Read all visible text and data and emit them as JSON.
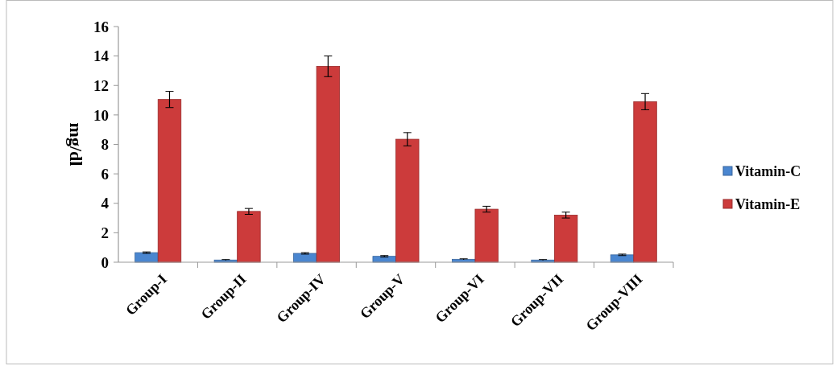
{
  "chart_data": {
    "type": "bar",
    "ylabel": "mg/dl",
    "categories": [
      "Group-I",
      "Group-II",
      "Group-IV",
      "Group-V",
      "Group-VI",
      "Group-VII",
      "Group-VIII"
    ],
    "series": [
      {
        "name": "Vitamin-C",
        "color": "#4a86d0",
        "values": [
          0.65,
          0.15,
          0.6,
          0.4,
          0.2,
          0.15,
          0.5
        ],
        "errors": [
          0.05,
          0.03,
          0.05,
          0.05,
          0.03,
          0.03,
          0.05
        ]
      },
      {
        "name": "Vitamin-E",
        "color": "#cc3b3b",
        "values": [
          11.05,
          3.45,
          13.3,
          8.35,
          3.6,
          3.2,
          10.9
        ],
        "errors": [
          0.55,
          0.2,
          0.7,
          0.45,
          0.2,
          0.2,
          0.55
        ]
      }
    ],
    "ylim": [
      0,
      16
    ],
    "yticks": [
      0,
      2,
      4,
      6,
      8,
      10,
      12,
      14,
      16
    ],
    "grid": false,
    "legend": "right"
  }
}
